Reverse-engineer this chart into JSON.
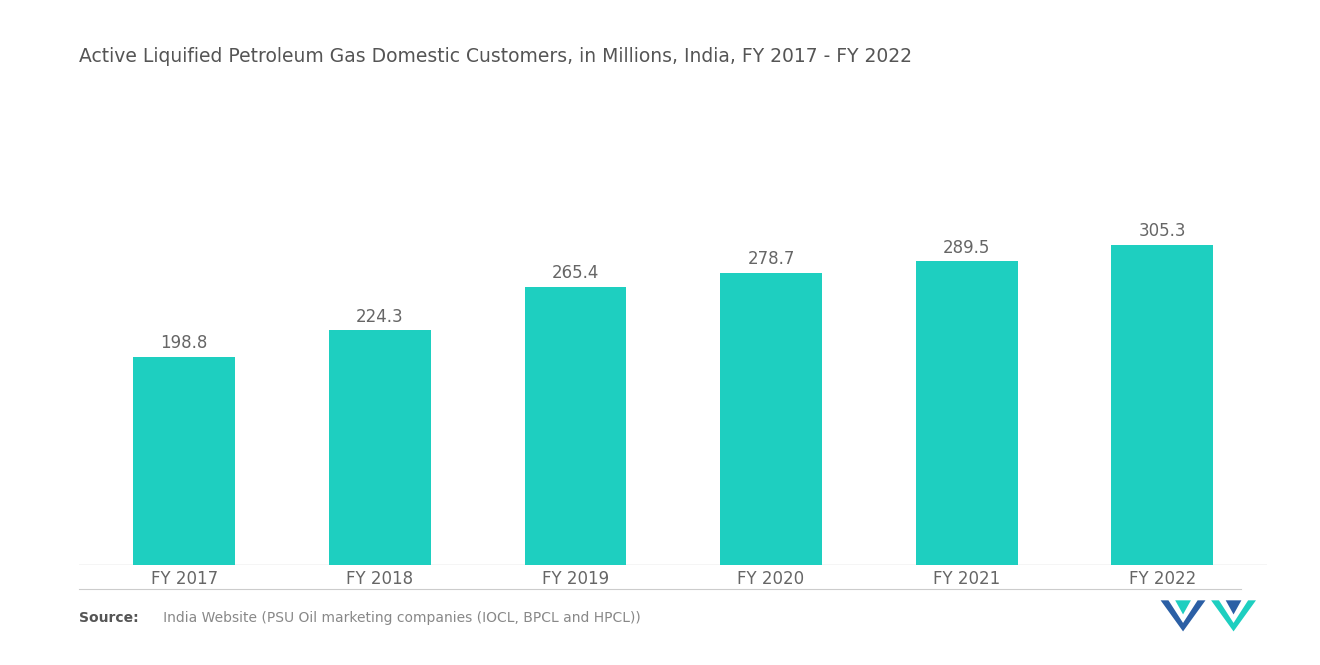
{
  "title": "Active Liquified Petroleum Gas Domestic Customers, in Millions, India, FY 2017 - FY 2022",
  "categories": [
    "FY 2017",
    "FY 2018",
    "FY 2019",
    "FY 2020",
    "FY 2021",
    "FY 2022"
  ],
  "values": [
    198.8,
    224.3,
    265.4,
    278.7,
    289.5,
    305.3
  ],
  "bar_color": "#1ECFC0",
  "background_color": "#ffffff",
  "title_fontsize": 13.5,
  "value_fontsize": 12,
  "xtick_fontsize": 12,
  "source_bold": "Source:",
  "source_rest": "   India Website (PSU Oil marketing companies (IOCL, BPCL and HPCL))",
  "ylim": [
    0,
    380
  ],
  "bar_width": 0.52
}
